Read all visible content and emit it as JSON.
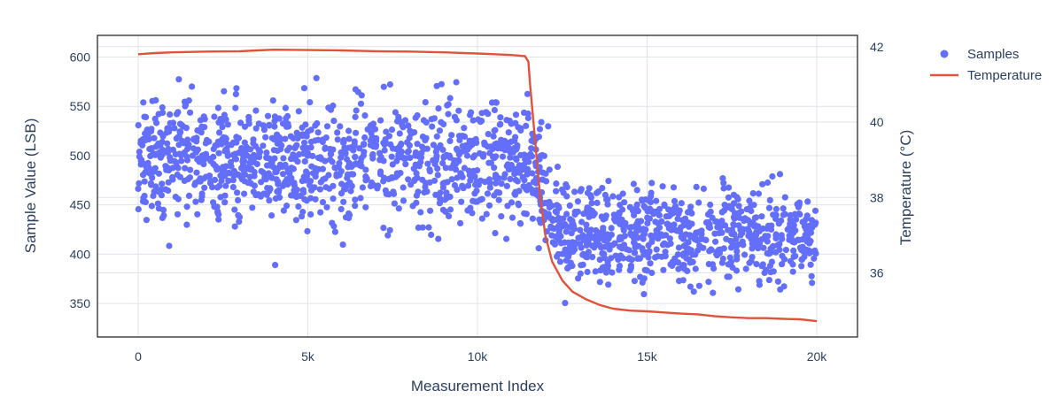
{
  "chart_data": {
    "type": "scatter",
    "xlabel": "Measurement Index",
    "ylabel": "Sample Value (LSB)",
    "y2label": "Temperature (°C)",
    "xlim": [
      -1200,
      21200
    ],
    "ylim": [
      316,
      622
    ],
    "y2lim": [
      34.3,
      42.3
    ],
    "x_ticks": [
      0,
      5000,
      10000,
      15000,
      20000
    ],
    "x_tick_labels": [
      "0",
      "5k",
      "10k",
      "15k",
      "20k"
    ],
    "y_ticks": [
      350,
      400,
      450,
      500,
      550,
      600
    ],
    "y2_ticks": [
      36,
      38,
      40,
      42
    ],
    "grid": true,
    "legend_position": "top-right",
    "colors": {
      "samples": "#636efa",
      "temperature": "#e0533b",
      "grid": "#dfe3ea",
      "axis": "#2a2a2a",
      "text": "#2a3f5f"
    },
    "series": [
      {
        "name": "Samples",
        "type": "scatter",
        "axis": "y",
        "segments": [
          {
            "x_start": 0,
            "x_end": 11500,
            "mean": 495,
            "spread": 38
          },
          {
            "x_start": 11500,
            "x_end": 12500,
            "mean_start": 495,
            "mean_end": 425,
            "spread": 35
          },
          {
            "x_start": 12500,
            "x_end": 20000,
            "mean": 420,
            "spread": 30
          }
        ],
        "approx_point_count": 1900
      },
      {
        "name": "Temperature",
        "type": "line",
        "axis": "y2",
        "x": [
          0,
          500,
          1000,
          2000,
          3000,
          3500,
          4000,
          5000,
          6000,
          7000,
          8000,
          9000,
          10000,
          10500,
          11000,
          11400,
          11500,
          11550,
          11650,
          11750,
          11850,
          12000,
          12200,
          12500,
          12800,
          13200,
          13600,
          14000,
          14500,
          15000,
          15500,
          16000,
          16500,
          17000,
          17500,
          18000,
          18500,
          19000,
          19500,
          20000
        ],
        "values": [
          41.8,
          41.83,
          41.85,
          41.87,
          41.88,
          41.9,
          41.92,
          41.91,
          41.9,
          41.88,
          41.87,
          41.85,
          41.82,
          41.8,
          41.78,
          41.75,
          41.6,
          41.0,
          40.0,
          39.0,
          38.0,
          37.0,
          36.3,
          35.8,
          35.5,
          35.3,
          35.15,
          35.05,
          35.0,
          34.98,
          34.95,
          34.92,
          34.9,
          34.85,
          34.82,
          34.8,
          34.8,
          34.78,
          34.77,
          34.72
        ]
      }
    ]
  }
}
